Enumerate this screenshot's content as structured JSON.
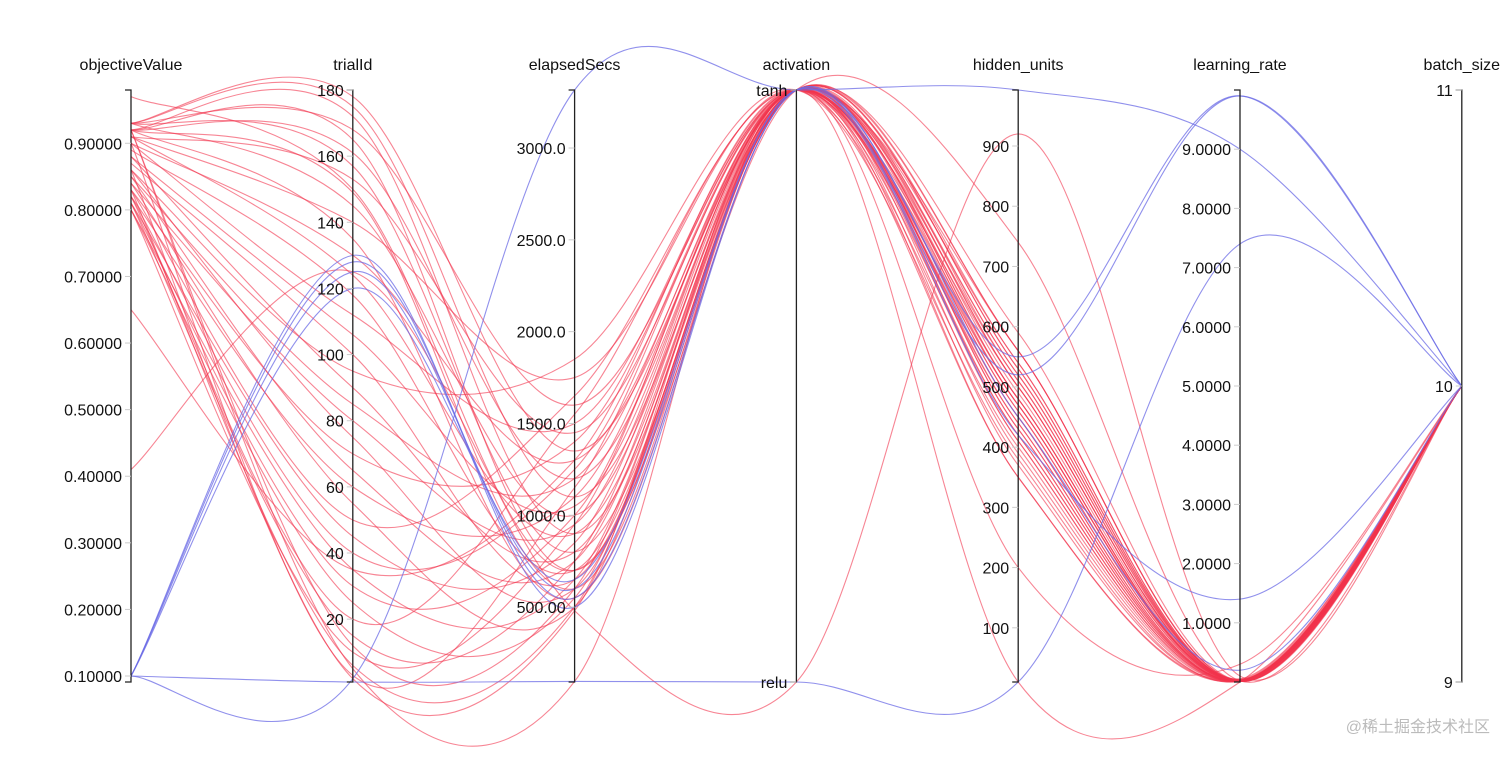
{
  "chart_data": {
    "type": "parallel-coordinates",
    "title": "",
    "colors": {
      "high_objective": "#f2334d",
      "low_objective": "#6b6be6"
    },
    "dimensions": [
      {
        "name": "objectiveValue",
        "range": [
          0.091,
          0.98
        ],
        "ticks": [
          0.1,
          0.2,
          0.3,
          0.4,
          0.5,
          0.6,
          0.7,
          0.8,
          0.9
        ],
        "tick_labels": [
          "0.10000",
          "0.20000",
          "0.30000",
          "0.40000",
          "0.50000",
          "0.60000",
          "0.70000",
          "0.80000",
          "0.90000"
        ]
      },
      {
        "name": "trialId",
        "range": [
          1,
          180
        ],
        "ticks": [
          20,
          40,
          60,
          80,
          100,
          120,
          140,
          160,
          180
        ],
        "tick_labels": [
          "20",
          "40",
          "60",
          "80",
          "100",
          "120",
          "140",
          "160",
          "180"
        ]
      },
      {
        "name": "elapsedSecs",
        "range": [
          92,
          3316
        ],
        "ticks": [
          500,
          1000,
          1500,
          2000,
          2500,
          3000
        ],
        "tick_labels": [
          "500.00",
          "1000.0",
          "1500.0",
          "2000.0",
          "2500.0",
          "3000.0"
        ]
      },
      {
        "name": "activation",
        "categorical": true,
        "categories": [
          "relu",
          "tanh"
        ],
        "tick_labels": [
          "relu",
          "tanh"
        ]
      },
      {
        "name": "hidden_units",
        "range": [
          10,
          993
        ],
        "ticks": [
          100,
          200,
          300,
          400,
          500,
          600,
          700,
          800,
          900
        ],
        "tick_labels": [
          "100",
          "200",
          "300",
          "400",
          "500",
          "600",
          "700",
          "800",
          "900"
        ]
      },
      {
        "name": "learning_rate",
        "range": [
          0,
          10
        ],
        "ticks": [
          1,
          2,
          3,
          4,
          5,
          6,
          7,
          8,
          9
        ],
        "tick_labels": [
          "1.0000",
          "2.0000",
          "3.0000",
          "4.0000",
          "5.0000",
          "6.0000",
          "7.0000",
          "8.0000",
          "9.0000"
        ]
      },
      {
        "name": "batch_size",
        "range": [
          9,
          11
        ],
        "ticks": [
          9,
          10,
          11
        ],
        "tick_labels": [
          "9",
          "10",
          "11"
        ]
      }
    ],
    "series": [
      {
        "group": "high_objective",
        "rows": [
          [
            0.93,
            178,
            1350,
            "tanh",
            560,
            0.02,
            10
          ],
          [
            0.93,
            175,
            1100,
            "tanh",
            540,
            0.01,
            10
          ],
          [
            0.92,
            172,
            900,
            "tanh",
            520,
            0.03,
            10
          ],
          [
            0.93,
            168,
            1600,
            "tanh",
            500,
            0.02,
            10
          ],
          [
            0.92,
            165,
            700,
            "tanh",
            480,
            0.01,
            10
          ],
          [
            0.92,
            161,
            1200,
            "tanh",
            470,
            0.05,
            10
          ],
          [
            0.93,
            157,
            800,
            "tanh",
            590,
            0.02,
            10
          ],
          [
            0.91,
            153,
            1450,
            "tanh",
            450,
            0.01,
            10
          ],
          [
            0.92,
            149,
            600,
            "tanh",
            430,
            0.03,
            10
          ],
          [
            0.93,
            145,
            1000,
            "tanh",
            410,
            0.02,
            10
          ],
          [
            0.91,
            140,
            1750,
            "tanh",
            400,
            0.02,
            10
          ],
          [
            0.92,
            135,
            550,
            "tanh",
            530,
            0.01,
            10
          ],
          [
            0.9,
            130,
            1300,
            "tanh",
            510,
            0.04,
            10
          ],
          [
            0.91,
            124,
            900,
            "tanh",
            490,
            0.02,
            10
          ],
          [
            0.89,
            118,
            700,
            "tanh",
            470,
            0.02,
            10
          ],
          [
            0.9,
            112,
            1500,
            "tanh",
            440,
            0.01,
            10
          ],
          [
            0.88,
            106,
            1050,
            "tanh",
            420,
            0.03,
            10
          ],
          [
            0.87,
            100,
            650,
            "tanh",
            560,
            0.02,
            10
          ],
          [
            0.86,
            95,
            1850,
            "tanh",
            380,
            0.01,
            10
          ],
          [
            0.88,
            90,
            800,
            "tanh",
            500,
            0.02,
            10
          ],
          [
            0.85,
            85,
            1200,
            "tanh",
            460,
            0.02,
            10
          ],
          [
            0.84,
            80,
            950,
            "tanh",
            350,
            0.03,
            10
          ],
          [
            0.86,
            75,
            600,
            "tanh",
            540,
            0.01,
            10
          ],
          [
            0.83,
            70,
            1400,
            "tanh",
            480,
            0.02,
            10
          ],
          [
            0.85,
            65,
            750,
            "tanh",
            430,
            0.02,
            10
          ],
          [
            0.82,
            60,
            1100,
            "tanh",
            520,
            0.01,
            10
          ],
          [
            0.84,
            55,
            500,
            "tanh",
            410,
            0.02,
            10
          ],
          [
            0.83,
            50,
            1650,
            "tanh",
            470,
            0.03,
            10
          ],
          [
            0.81,
            45,
            850,
            "tanh",
            390,
            0.02,
            10
          ],
          [
            0.82,
            40,
            1250,
            "tanh",
            450,
            0.01,
            10
          ],
          [
            0.8,
            35,
            650,
            "tanh",
            500,
            0.02,
            10
          ],
          [
            0.81,
            30,
            1000,
            "tanh",
            440,
            0.02,
            10
          ],
          [
            0.8,
            25,
            550,
            "tanh",
            560,
            0.01,
            10
          ],
          [
            0.82,
            20,
            1550,
            "tanh",
            420,
            0.02,
            10
          ],
          [
            0.81,
            15,
            750,
            "tanh",
            480,
            0.03,
            10
          ],
          [
            0.8,
            10,
            950,
            "tanh",
            370,
            0.02,
            10
          ],
          [
            0.83,
            6,
            500,
            "tanh",
            530,
            0.01,
            10
          ],
          [
            0.9,
            3,
            1150,
            "tanh",
            460,
            0.02,
            10
          ],
          [
            0.92,
            12,
            600,
            "tanh",
            510,
            0.02,
            10
          ],
          [
            0.97,
            150,
            700,
            "tanh",
            740,
            0.02,
            10
          ],
          [
            0.65,
            35,
            1300,
            "tanh",
            350,
            0.05,
            10
          ],
          [
            0.41,
            125,
            480,
            "relu",
            920,
            0.1,
            10
          ],
          [
            0.92,
            5,
            95,
            "tanh",
            10,
            0.0,
            10
          ],
          [
            0.86,
            2,
            480,
            "tanh",
            200,
            0.3,
            10
          ]
        ]
      },
      {
        "group": "low_objective",
        "rows": [
          [
            0.1,
            130,
            500,
            "tanh",
            520,
            9.9,
            10
          ],
          [
            0.1,
            128,
            550,
            "tanh",
            550,
            9.9,
            10
          ],
          [
            0.1,
            2,
            3316,
            "tanh",
            993,
            9.0,
            10
          ],
          [
            0.1,
            1,
            95,
            "relu",
            10,
            7.4,
            10
          ],
          [
            0.1,
            125,
            600,
            "tanh",
            420,
            1.4,
            10
          ],
          [
            0.1,
            120,
            650,
            "tanh",
            450,
            0.2,
            10
          ]
        ]
      }
    ]
  },
  "watermark": "@稀土掘金技术社区"
}
